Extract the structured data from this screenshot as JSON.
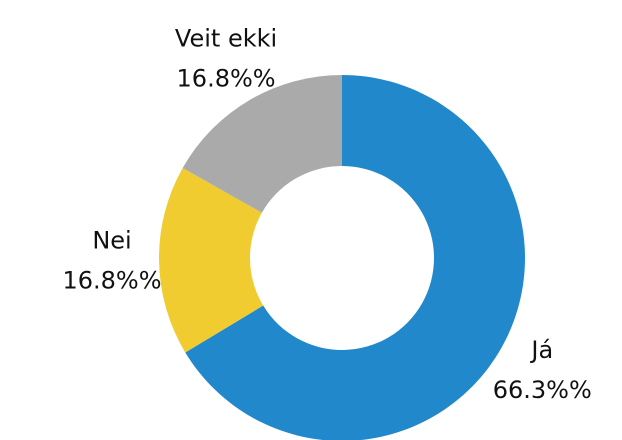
{
  "chart_data": {
    "type": "donut",
    "categories": [
      "Já",
      "Nei",
      "Veit ekki"
    ],
    "values": [
      66.3,
      16.8,
      16.8
    ],
    "value_labels": [
      "66.3%%",
      "16.8%%",
      "16.8%%"
    ],
    "colors": [
      "#2288cc",
      "#f0cc30",
      "#aaaaaa"
    ]
  }
}
